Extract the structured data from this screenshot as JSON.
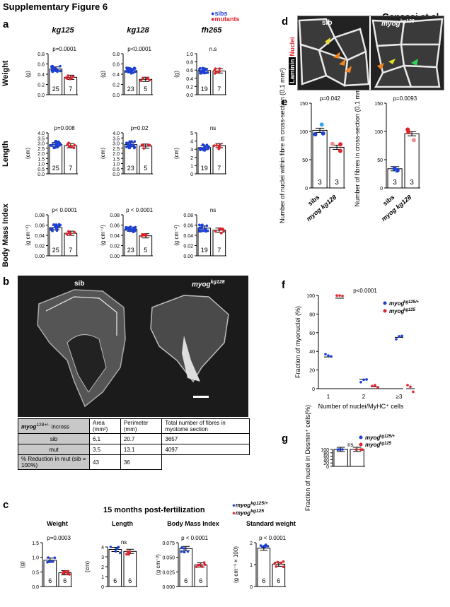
{
  "figure_title": "Supplementary Figure 6",
  "authors": "Ganassi et al.",
  "panels": {
    "a": "a",
    "b": "b",
    "c": "c",
    "d": "d",
    "e": "e",
    "f": "f",
    "g": "g"
  },
  "colors": {
    "sib": "#1c3fd4",
    "mut": "#e0232b",
    "light_blue": "#3aa8e6",
    "pink": "#f28b8b",
    "orange": "#f08420",
    "yellow": "#e8e020",
    "green": "#2fd35a"
  },
  "legend_a": {
    "sibs": "sibs",
    "mutants": "mutants"
  },
  "legend_c": {
    "het": "myog",
    "het_sup": "kg125/+",
    "mut": "myog",
    "mut_sup": "kg125"
  },
  "panel_a": {
    "columns": [
      "kg125",
      "kg128",
      "fh265"
    ],
    "rows": [
      "Weight",
      "Length",
      "Body Mass Index"
    ]
  },
  "panel_b": {
    "sib_label": "sib",
    "mut_label": "myog",
    "mut_sup": "kg128",
    "table": {
      "header": [
        "myog 128+/- incross",
        "Area (mm²)",
        "Perimeter (mm)",
        "Total number of fibres in myotome section"
      ],
      "header_gene": "myog",
      "header_sup": "128+/-",
      "header_rest": " incross",
      "rows": [
        [
          "sib",
          "6.1",
          "20.7",
          "3657"
        ],
        [
          "mut",
          "3.5",
          "13.1",
          "4097"
        ],
        [
          "% Reduction in mut (sib = 100%)",
          "43",
          "36",
          ""
        ]
      ]
    }
  },
  "panel_c": {
    "heading": "15 months post-fertilization"
  },
  "panel_d": {
    "sib": "sib",
    "mut": "myog",
    "mut_sup": "kg128",
    "stain1": "Laminin",
    "stain2": "Nuclei"
  },
  "chart_data": [
    {
      "id": "a-weight-kg125",
      "type": "bar",
      "title": "kg125",
      "ylabel": "(g)",
      "row_label": "Weight",
      "categories": [
        "sibs",
        "mutants"
      ],
      "values": [
        0.5,
        0.34
      ],
      "n": [
        "25",
        "7"
      ],
      "p_label": "p=0.0001",
      "ylim": [
        0,
        0.8
      ],
      "yticks": [
        "0.0",
        "0.2",
        "0.4",
        "0.6",
        "0.8"
      ]
    },
    {
      "id": "a-weight-kg128",
      "type": "bar",
      "title": "kg128",
      "ylabel": "(g)",
      "categories": [
        "sibs",
        "mutants"
      ],
      "values": [
        0.47,
        0.3
      ],
      "n": [
        "23",
        "5"
      ],
      "p_label": "p<0.0001",
      "ylim": [
        0,
        0.8
      ],
      "yticks": [
        "0.0",
        "0.2",
        "0.4",
        "0.6",
        "0.8"
      ]
    },
    {
      "id": "a-weight-fh265",
      "type": "bar",
      "title": "fh265",
      "ylabel": "(g)",
      "categories": [
        "sibs",
        "mutants"
      ],
      "values": [
        0.59,
        0.58
      ],
      "n": [
        "19",
        "7"
      ],
      "p_label": "n.s",
      "ylim": [
        0,
        1.0
      ],
      "yticks": [
        "0.0",
        "0.2",
        "0.4",
        "0.6",
        "0.8",
        "1.0"
      ]
    },
    {
      "id": "a-length-kg125",
      "type": "bar",
      "ylabel": "(cm)",
      "row_label": "Length",
      "categories": [
        "sibs",
        "mutants"
      ],
      "values": [
        2.85,
        2.75
      ],
      "n": [
        "25",
        "7"
      ],
      "p_label": "p=0.008",
      "ylim": [
        0,
        4
      ],
      "yticks": [
        "0.0",
        "0.5",
        "1.0",
        "1.5",
        "2.0",
        "2.5",
        "3.0",
        "3.5",
        "4.0"
      ]
    },
    {
      "id": "a-length-kg128",
      "type": "bar",
      "ylabel": "(cm)",
      "categories": [
        "sibs",
        "mutants"
      ],
      "values": [
        2.85,
        2.7
      ],
      "n": [
        "23",
        "5"
      ],
      "p_label": "p=0.02",
      "ylim": [
        0,
        4
      ],
      "yticks": [
        "0.0",
        "0.5",
        "1.0",
        "1.5",
        "2.0",
        "2.5",
        "3.0",
        "3.5",
        "4.0"
      ]
    },
    {
      "id": "a-length-fh265",
      "type": "bar",
      "ylabel": "(cm)",
      "categories": [
        "sibs",
        "mutants"
      ],
      "values": [
        3.2,
        3.45
      ],
      "n": [
        "19",
        "7"
      ],
      "p_label": "ns",
      "ylim": [
        0,
        5
      ],
      "yticks": [
        "0",
        "1",
        "2",
        "3",
        "4",
        "5"
      ]
    },
    {
      "id": "a-bmi-kg125",
      "type": "bar",
      "ylabel": "(g cm⁻²)",
      "row_label": "Body Mass Index",
      "categories": [
        "sibs",
        "mutants"
      ],
      "values": [
        0.055,
        0.044
      ],
      "n": [
        "25",
        "7"
      ],
      "p_label": "p< 0.0001",
      "ylim": [
        0,
        0.08
      ],
      "yticks": [
        "0.00",
        "0.02",
        "0.04",
        "0.06",
        "0.08"
      ]
    },
    {
      "id": "a-bmi-kg128",
      "type": "bar",
      "ylabel": "(g cm⁻²)",
      "categories": [
        "sibs",
        "mutants"
      ],
      "values": [
        0.052,
        0.039
      ],
      "n": [
        "23",
        "5"
      ],
      "p_label": "p < 0.0001",
      "ylim": [
        0,
        0.08
      ],
      "yticks": [
        "0.00",
        "0.02",
        "0.04",
        "0.06",
        "0.08"
      ]
    },
    {
      "id": "a-bmi-fh265",
      "type": "bar",
      "ylabel": "(g cm⁻²)",
      "categories": [
        "sibs",
        "mutants"
      ],
      "values": [
        0.054,
        0.05
      ],
      "n": [
        "19",
        "7"
      ],
      "p_label": "ns",
      "ylim": [
        0,
        0.08
      ],
      "yticks": [
        "0.00",
        "0.02",
        "0.04",
        "0.06",
        "0.08"
      ]
    },
    {
      "id": "c-weight",
      "type": "bar",
      "title": "Weight",
      "ylabel": "(g)",
      "categories": [
        "myog kg125/+",
        "myog kg125"
      ],
      "values": [
        0.9,
        0.47
      ],
      "n": [
        "6",
        "6"
      ],
      "p_label": "p=0.0003",
      "ylim": [
        0,
        1.5
      ],
      "yticks": [
        "0.0",
        "0.5",
        "1.0",
        "1.5"
      ]
    },
    {
      "id": "c-length",
      "type": "bar",
      "title": "Length",
      "ylabel": "(cm)",
      "categories": [
        "myog kg125/+",
        "myog kg125"
      ],
      "values": [
        3.75,
        3.55
      ],
      "n": [
        "6",
        "6"
      ],
      "p_label": "ns",
      "ylim": [
        0,
        4
      ],
      "yticks": [
        "0",
        "1",
        "2",
        "3",
        "4"
      ]
    },
    {
      "id": "c-bmi",
      "type": "bar",
      "title": "Body Mass Index",
      "ylabel": "(g cm⁻²)",
      "categories": [
        "myog kg125/+",
        "myog kg125"
      ],
      "values": [
        0.065,
        0.037
      ],
      "n": [
        "6",
        "6"
      ],
      "p_label": "p < 0.0001",
      "ylim": [
        0,
        0.075
      ],
      "yticks": [
        "0.000",
        "0.025",
        "0.050",
        "0.075"
      ]
    },
    {
      "id": "c-stdweight",
      "type": "bar",
      "title": "Standard weight",
      "ylabel": "(g cm⁻³ × 100)",
      "categories": [
        "myog kg125/+",
        "myog kg125"
      ],
      "values": [
        1.75,
        1.02
      ],
      "n": [
        "6",
        "6"
      ],
      "p_label": "p < 0.0001",
      "ylim": [
        0,
        2
      ],
      "yticks": [
        "0",
        "1",
        "2"
      ]
    },
    {
      "id": "e-nuclei",
      "type": "bar",
      "ylabel": "Number of nuclei within fibre in cross-section (0.1 mm²)",
      "categories": [
        "sibs",
        "myog kg128"
      ],
      "values": [
        102,
        72
      ],
      "n": [
        "3",
        "3"
      ],
      "p_label": "p=0.042",
      "ylim": [
        0,
        150
      ],
      "yticks": [
        "0",
        "50",
        "100",
        "150"
      ]
    },
    {
      "id": "e-fibres",
      "type": "bar",
      "ylabel": "Number of fibres in cross-section (0.1 mm²)",
      "categories": [
        "sibs",
        "myog kg128"
      ],
      "values": [
        34,
        96
      ],
      "n": [
        "3",
        "3"
      ],
      "p_label": "p=0.0093",
      "ylim": [
        0,
        150
      ],
      "yticks": [
        "0",
        "50",
        "100",
        "150"
      ]
    },
    {
      "id": "f",
      "type": "scatter",
      "ylabel": "Fraction of myonuclei (%)",
      "xlabel": "Number of nuclei/MyHC⁺ cells",
      "categories": [
        "1",
        "2",
        "≥3"
      ],
      "series": [
        {
          "name": "myog kg125/+",
          "values": [
            34,
            10,
            55
          ]
        },
        {
          "name": "myog kg125",
          "values": [
            97,
            2,
            0
          ]
        }
      ],
      "p_label": "p<0.0001",
      "ylim": [
        0,
        100
      ],
      "yticks": [
        "0",
        "20",
        "40",
        "60",
        "80",
        "100"
      ]
    },
    {
      "id": "g",
      "type": "bar",
      "ylabel": "Fraction of nuclei in Desmin⁺ cells(%)",
      "categories": [
        "myog kg125/+",
        "myog kg125"
      ],
      "values": [
        100,
        100
      ],
      "p_label": "ns",
      "ylim": [
        0,
        100
      ],
      "yticks": [
        "0",
        "20",
        "40",
        "60",
        "80",
        "100"
      ]
    }
  ]
}
